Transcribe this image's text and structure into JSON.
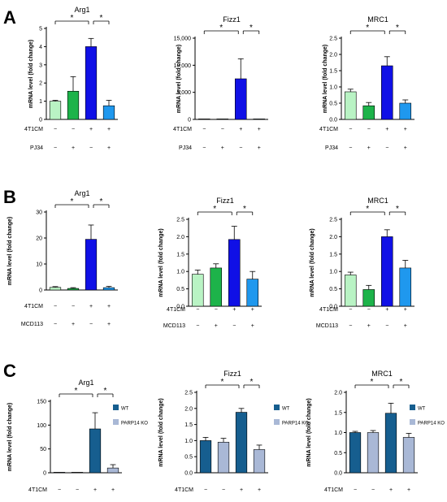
{
  "colors": {
    "light_green": "#b9f3c4",
    "green": "#1db34a",
    "blue": "#1010e6",
    "light_blue": "#1f98ee",
    "wt": "#165e8f",
    "ko": "#a9b8d6",
    "axis": "#000000"
  },
  "panels": [
    {
      "letter": "A",
      "conditions": [
        {
          "label": "4T1CM",
          "signs": [
            "−",
            "−",
            "+",
            "+"
          ]
        },
        {
          "label": "PJ34",
          "signs": [
            "−",
            "+",
            "−",
            "+"
          ]
        }
      ]
    },
    {
      "letter": "B",
      "conditions": [
        {
          "label": "4T1CM",
          "signs": [
            "−",
            "−",
            "+",
            "+"
          ]
        },
        {
          "label": "MCD113",
          "signs": [
            "−",
            "+",
            "−",
            "+"
          ]
        }
      ]
    },
    {
      "letter": "C",
      "conditions": [
        {
          "label": "4T1CM",
          "signs": [
            "−",
            "−",
            "+",
            "+"
          ]
        }
      ]
    }
  ],
  "chart_data": [
    {
      "type": "bar",
      "panel": "A",
      "title": "Arg1",
      "ylabel": "mRNA level (fold change)",
      "ylim": [
        0,
        5
      ],
      "yticks": [
        "0",
        "1",
        "2",
        "3",
        "4",
        "5"
      ],
      "ytick_values": [
        0,
        1,
        2,
        3,
        4,
        5
      ],
      "values": [
        1.0,
        1.55,
        4.0,
        0.75
      ],
      "errors": [
        0.05,
        0.8,
        0.45,
        0.3
      ],
      "colors": [
        "light_green",
        "green",
        "blue",
        "light_blue"
      ],
      "significance": [
        {
          "from": 0,
          "to": 2,
          "label": "*"
        },
        {
          "from": 2,
          "to": 3,
          "label": "*"
        }
      ]
    },
    {
      "type": "bar",
      "panel": "A",
      "title": "Fizz1",
      "ylabel": "mRNA level (fold change)",
      "ylim": [
        0,
        15000
      ],
      "yticks": [
        "0",
        "5,000",
        "10,000",
        "15,000"
      ],
      "ytick_values": [
        0,
        5000,
        10000,
        15000
      ],
      "values": [
        1,
        1,
        7500,
        1
      ],
      "errors": [
        0,
        0,
        3700,
        0
      ],
      "colors": [
        "light_green",
        "green",
        "blue",
        "light_blue"
      ],
      "significance": [
        {
          "from": 0,
          "to": 2,
          "label": "*"
        },
        {
          "from": 2,
          "to": 3,
          "label": "*"
        }
      ]
    },
    {
      "type": "bar",
      "panel": "A",
      "title": "MRC1",
      "ylabel": "mRNA level (fold change)",
      "ylim": [
        0,
        2.5
      ],
      "yticks": [
        "0.0",
        "0.5",
        "1.0",
        "1.5",
        "2.0",
        "2.5"
      ],
      "ytick_values": [
        0,
        0.5,
        1.0,
        1.5,
        2.0,
        2.5
      ],
      "values": [
        0.85,
        0.42,
        1.65,
        0.5
      ],
      "errors": [
        0.08,
        0.1,
        0.28,
        0.1
      ],
      "colors": [
        "light_green",
        "green",
        "blue",
        "light_blue"
      ],
      "significance": [
        {
          "from": 0,
          "to": 2,
          "label": "*"
        },
        {
          "from": 2,
          "to": 3,
          "label": "*"
        }
      ]
    },
    {
      "type": "bar",
      "panel": "B",
      "title": "Arg1",
      "ylabel": "mRNA level (fold change)",
      "ylim": [
        0,
        30
      ],
      "yticks": [
        "0",
        "10",
        "20",
        "30"
      ],
      "ytick_values": [
        0,
        10,
        20,
        30
      ],
      "values": [
        1.0,
        0.6,
        19.5,
        0.9
      ],
      "errors": [
        0.3,
        0.3,
        5.5,
        0.5
      ],
      "colors": [
        "light_green",
        "green",
        "blue",
        "light_blue"
      ],
      "significance": [
        {
          "from": 0,
          "to": 2,
          "label": "*"
        },
        {
          "from": 2,
          "to": 3,
          "label": "*"
        }
      ]
    },
    {
      "type": "bar",
      "panel": "B",
      "title": "Fizz1",
      "ylabel": "mRNA level (fold change)",
      "ylim": [
        0,
        2.5
      ],
      "yticks": [
        "0.0",
        "0.5",
        "1.0",
        "1.5",
        "2.0",
        "2.5"
      ],
      "ytick_values": [
        0,
        0.5,
        1.0,
        1.5,
        2.0,
        2.5
      ],
      "values": [
        0.92,
        1.1,
        1.92,
        0.78
      ],
      "errors": [
        0.12,
        0.12,
        0.38,
        0.22
      ],
      "colors": [
        "light_green",
        "green",
        "blue",
        "light_blue"
      ],
      "significance": [
        {
          "from": 0,
          "to": 2,
          "label": "*"
        },
        {
          "from": 2,
          "to": 3,
          "label": "*"
        }
      ]
    },
    {
      "type": "bar",
      "panel": "B",
      "title": "MRC1",
      "ylabel": "mRNA level (fold change)",
      "ylim": [
        0,
        2.5
      ],
      "yticks": [
        "0.0",
        "0.5",
        "1.0",
        "1.5",
        "2.0",
        "2.5"
      ],
      "ytick_values": [
        0,
        0.5,
        1.0,
        1.5,
        2.0,
        2.5
      ],
      "values": [
        0.9,
        0.48,
        2.0,
        1.1
      ],
      "errors": [
        0.08,
        0.12,
        0.2,
        0.22
      ],
      "colors": [
        "light_green",
        "green",
        "blue",
        "light_blue"
      ],
      "significance": [
        {
          "from": 0,
          "to": 2,
          "label": "*"
        },
        {
          "from": 2,
          "to": 3,
          "label": "*"
        }
      ]
    },
    {
      "type": "bar",
      "panel": "C",
      "title": "Arg1",
      "ylabel": "mRNA level (fold change)",
      "ylim": [
        0,
        150
      ],
      "yticks": [
        "0",
        "50",
        "100",
        "150"
      ],
      "ytick_values": [
        0,
        50,
        100,
        150
      ],
      "values": [
        1,
        1,
        92,
        10
      ],
      "errors": [
        0,
        0,
        34,
        7
      ],
      "colors": [
        "wt",
        "ko",
        "wt",
        "ko"
      ],
      "legend": [
        {
          "label": "WT",
          "color": "wt"
        },
        {
          "label": "PARP14 KO",
          "color": "ko"
        }
      ],
      "significance": [
        {
          "from": 0,
          "to": 2,
          "label": "*"
        },
        {
          "from": 2,
          "to": 3,
          "label": "*"
        }
      ]
    },
    {
      "type": "bar",
      "panel": "C",
      "title": "Fizz1",
      "ylabel": "mRNA level (fold change)",
      "ylim": [
        0,
        2.5
      ],
      "yticks": [
        "0.0",
        "0.5",
        "1.0",
        "1.5",
        "2.0",
        "2.5"
      ],
      "ytick_values": [
        0,
        0.5,
        1.0,
        1.5,
        2.0,
        2.5
      ],
      "values": [
        1.0,
        0.95,
        1.88,
        0.72
      ],
      "errors": [
        0.1,
        0.12,
        0.12,
        0.14
      ],
      "colors": [
        "wt",
        "ko",
        "wt",
        "ko"
      ],
      "legend": [
        {
          "label": "WT",
          "color": "wt"
        },
        {
          "label": "PARP14 KO",
          "color": "ko"
        }
      ],
      "significance": [
        {
          "from": 0,
          "to": 2,
          "label": "*"
        },
        {
          "from": 2,
          "to": 3,
          "label": "*"
        }
      ]
    },
    {
      "type": "bar",
      "panel": "C",
      "title": "MRC1",
      "ylabel": "mRNA level (fold change)",
      "ylim": [
        0,
        2.0
      ],
      "yticks": [
        "0.0",
        "0.5",
        "1.0",
        "1.5",
        "2.0"
      ],
      "ytick_values": [
        0,
        0.5,
        1.0,
        1.5,
        2.0
      ],
      "values": [
        1.0,
        1.0,
        1.48,
        0.88
      ],
      "errors": [
        0.03,
        0.05,
        0.25,
        0.1
      ],
      "colors": [
        "wt",
        "ko",
        "wt",
        "ko"
      ],
      "legend": [
        {
          "label": "WT",
          "color": "wt"
        },
        {
          "label": "PARP14 KO",
          "color": "ko"
        }
      ],
      "significance": [
        {
          "from": 0,
          "to": 2,
          "label": "*"
        },
        {
          "from": 2,
          "to": 3,
          "label": "*"
        }
      ]
    }
  ]
}
